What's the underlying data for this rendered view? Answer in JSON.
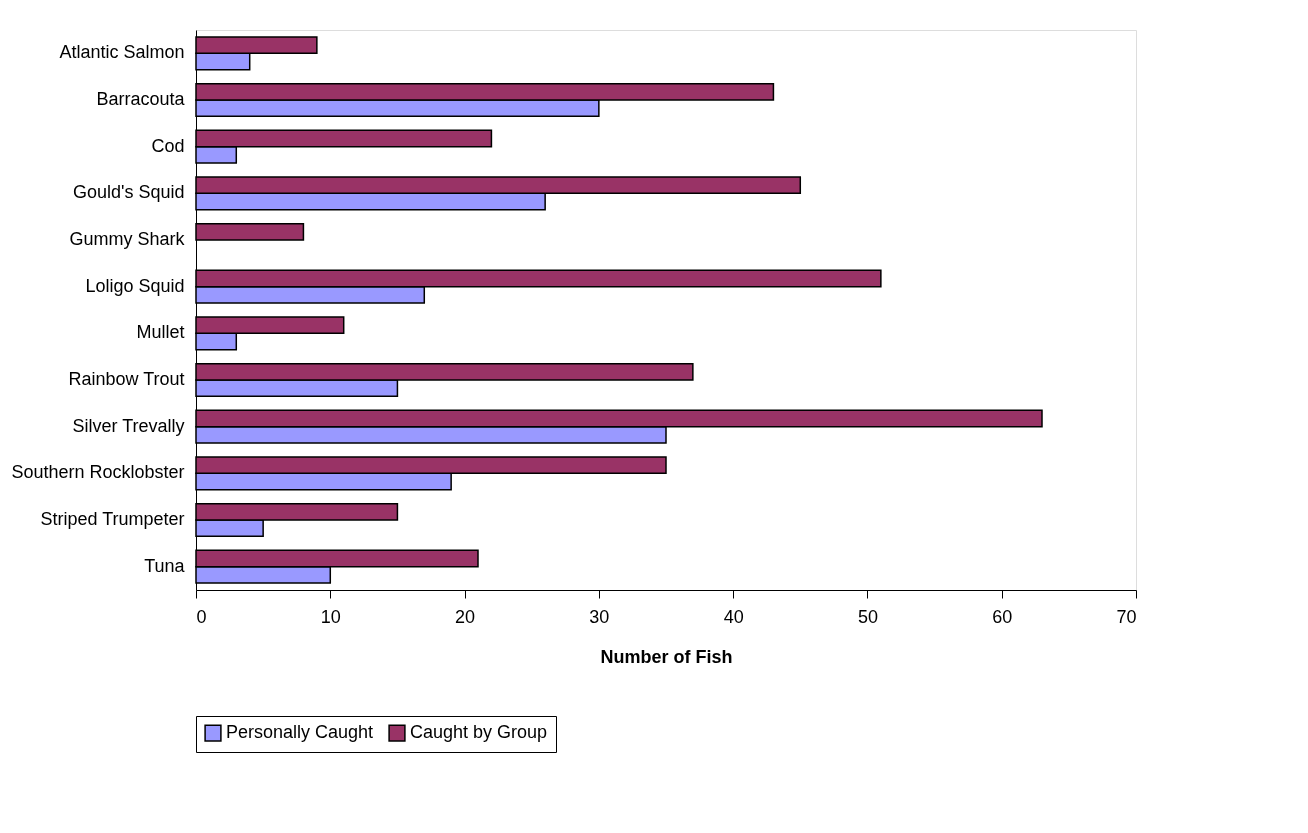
{
  "chart_data": {
    "type": "bar",
    "orientation": "horizontal",
    "xlabel": "Number of Fish",
    "categories": [
      "Atlantic Salmon",
      "Barracouta",
      "Cod",
      "Gould's Squid",
      "Gummy Shark",
      "Loligo Squid",
      "Mullet",
      "Rainbow Trout",
      "Silver Trevally",
      "Southern Rocklobster",
      "Striped Trumpeter",
      "Tuna"
    ],
    "series": [
      {
        "name": "Personally Caught",
        "color": "#9999ff",
        "values": [
          4,
          30,
          3,
          26,
          null,
          17,
          3,
          15,
          35,
          19,
          5,
          10
        ]
      },
      {
        "name": "Caught by Group",
        "color": "#993366",
        "values": [
          9,
          43,
          22,
          45,
          8,
          51,
          11,
          37,
          63,
          35,
          15,
          21
        ]
      }
    ],
    "xlim": [
      0,
      70
    ],
    "xticks": [
      0,
      10,
      20,
      30,
      40,
      50,
      60,
      70
    ],
    "grid": false,
    "legend": "bottom"
  }
}
